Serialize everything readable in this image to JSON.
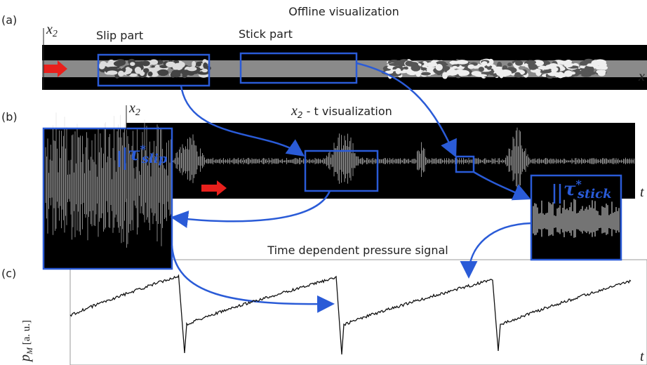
{
  "panels": [
    {
      "label": "(a)",
      "axis_y": {
        "symbol": "x",
        "sub": "2"
      },
      "title": "Offline visualization",
      "annotations": [
        "Slip part",
        "Stick part"
      ],
      "axis_x": "x"
    },
    {
      "label": "(b)",
      "axis_y": {
        "symbol": "x",
        "sub": "2"
      },
      "title": {
        "symbol": "x",
        "sub": "2",
        "rest": " - t visualization"
      },
      "tau_slip": {
        "symbol": "τ",
        "sup": "*",
        "sub": "slip"
      },
      "tau_stick": {
        "symbol": "τ",
        "sup": "*",
        "sub": "stick"
      },
      "axis_x": "t"
    },
    {
      "label": "(c)",
      "title": "Time dependent pressure signal",
      "axis_y": {
        "symbol": "p",
        "sub": "M",
        "rest": " [a. u.]"
      },
      "axis_x": "t"
    }
  ]
}
